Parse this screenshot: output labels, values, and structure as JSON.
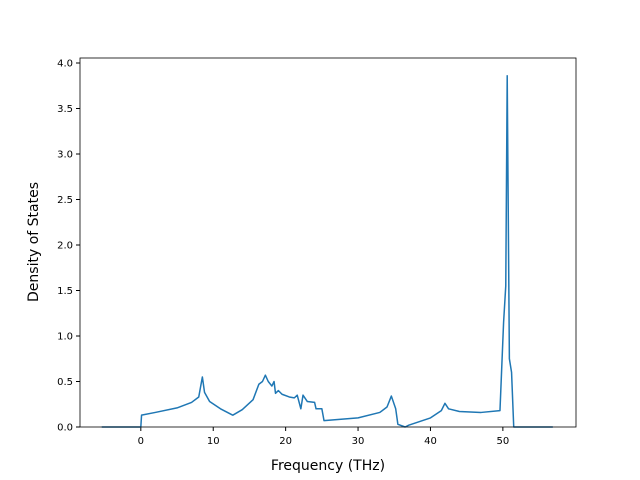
{
  "chart_data": {
    "type": "line",
    "xlabel": "Frequency (THz)",
    "ylabel": "Density of States",
    "xlim": [
      -8.4,
      60.1
    ],
    "ylim": [
      0,
      4.055
    ],
    "xticks": [
      0,
      10,
      20,
      30,
      40,
      50
    ],
    "yticks": [
      {
        "value": 0,
        "label": "0.0"
      },
      {
        "value": 0.5,
        "label": "0.5"
      },
      {
        "value": 1,
        "label": "1.0"
      },
      {
        "value": 1.5,
        "label": "1.5"
      },
      {
        "value": 2,
        "label": "2.0"
      },
      {
        "value": 2.5,
        "label": "2.5"
      },
      {
        "value": 3,
        "label": "3.0"
      },
      {
        "value": 3.5,
        "label": "3.5"
      },
      {
        "value": 4,
        "label": "4.0"
      }
    ],
    "grid": false,
    "series": [
      {
        "color": "#1f77b4",
        "x": [
          -5.4,
          0,
          0.1,
          2,
          5,
          7,
          8,
          8.5,
          8.8,
          9.5,
          11,
          12.7,
          14,
          15.5,
          16.3,
          16.8,
          17.2,
          17.6,
          18.1,
          18.4,
          18.6,
          19,
          19.5,
          20.5,
          21.2,
          21.6,
          22.1,
          22.4,
          23,
          24,
          24.2,
          25,
          25.3,
          30,
          33,
          34,
          34.6,
          35.2,
          35.5,
          36.5,
          37,
          40,
          41.5,
          42,
          42.5,
          44,
          47,
          49.6,
          50.1,
          50.4,
          50.6,
          50.9,
          51.2,
          51.5,
          56.9
        ],
        "values": [
          0,
          0,
          0.13,
          0.16,
          0.21,
          0.27,
          0.33,
          0.55,
          0.38,
          0.28,
          0.2,
          0.13,
          0.19,
          0.3,
          0.47,
          0.5,
          0.57,
          0.5,
          0.45,
          0.5,
          0.37,
          0.4,
          0.36,
          0.33,
          0.32,
          0.35,
          0.2,
          0.35,
          0.28,
          0.27,
          0.2,
          0.2,
          0.07,
          0.1,
          0.16,
          0.22,
          0.34,
          0.2,
          0.03,
          0,
          0.02,
          0.1,
          0.18,
          0.26,
          0.2,
          0.17,
          0.16,
          0.18,
          1.15,
          1.55,
          3.86,
          0.75,
          0.6,
          0,
          0
        ]
      }
    ]
  }
}
